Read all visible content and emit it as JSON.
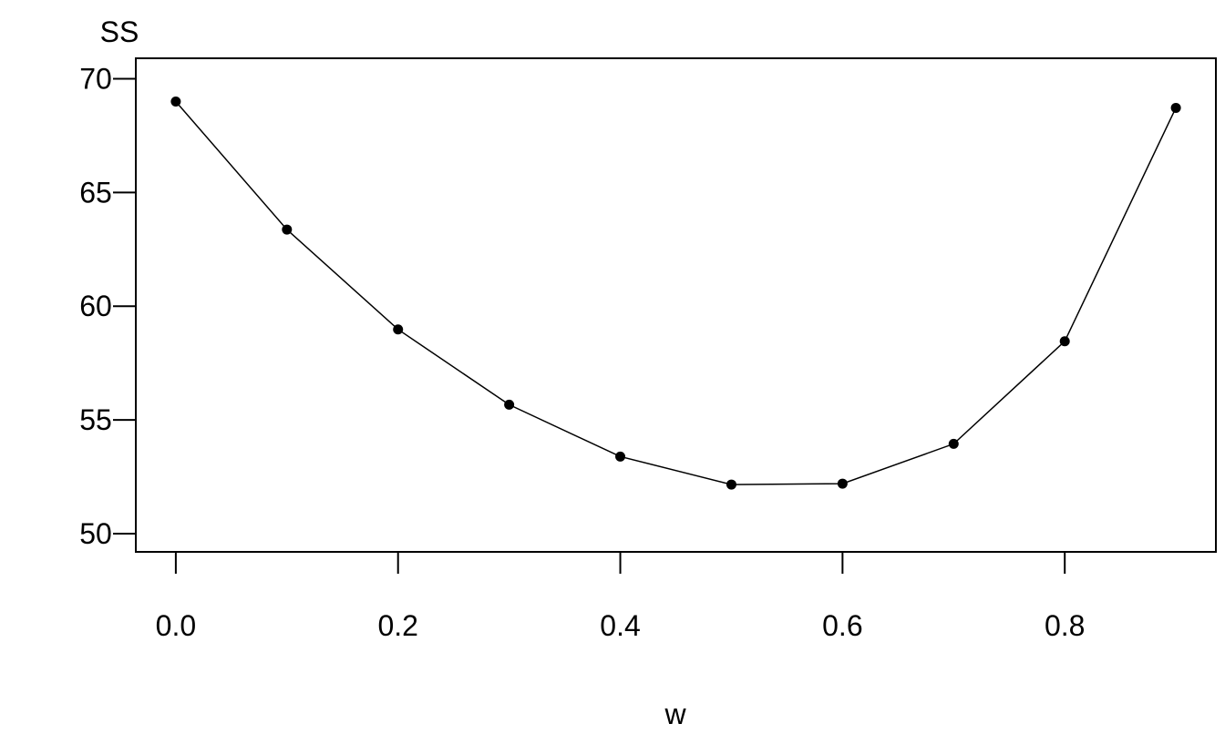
{
  "chart_data": {
    "type": "line",
    "title": "",
    "xlabel": "w",
    "ylabel": "SS",
    "x": [
      0.0,
      0.1,
      0.2,
      0.3,
      0.4,
      0.5,
      0.6,
      0.7,
      0.8,
      0.9
    ],
    "series": [
      {
        "values": [
          69.0,
          63.37,
          58.98,
          55.67,
          53.39,
          52.16,
          52.2,
          53.95,
          58.46,
          68.72
        ]
      }
    ],
    "xlim": [
      -0.036,
      0.936
    ],
    "ylim": [
      49.2,
      70.9
    ],
    "xticks": [
      0.0,
      0.2,
      0.4,
      0.6,
      0.8
    ],
    "xtick_labels": [
      "0.0",
      "0.2",
      "0.4",
      "0.6",
      "0.8"
    ],
    "yticks": [
      50,
      55,
      60,
      65,
      70
    ],
    "ytick_labels": [
      "50",
      "55",
      "60",
      "65",
      "70"
    ],
    "grid": false,
    "markers": "filled-circle",
    "line_color": "#000000"
  }
}
